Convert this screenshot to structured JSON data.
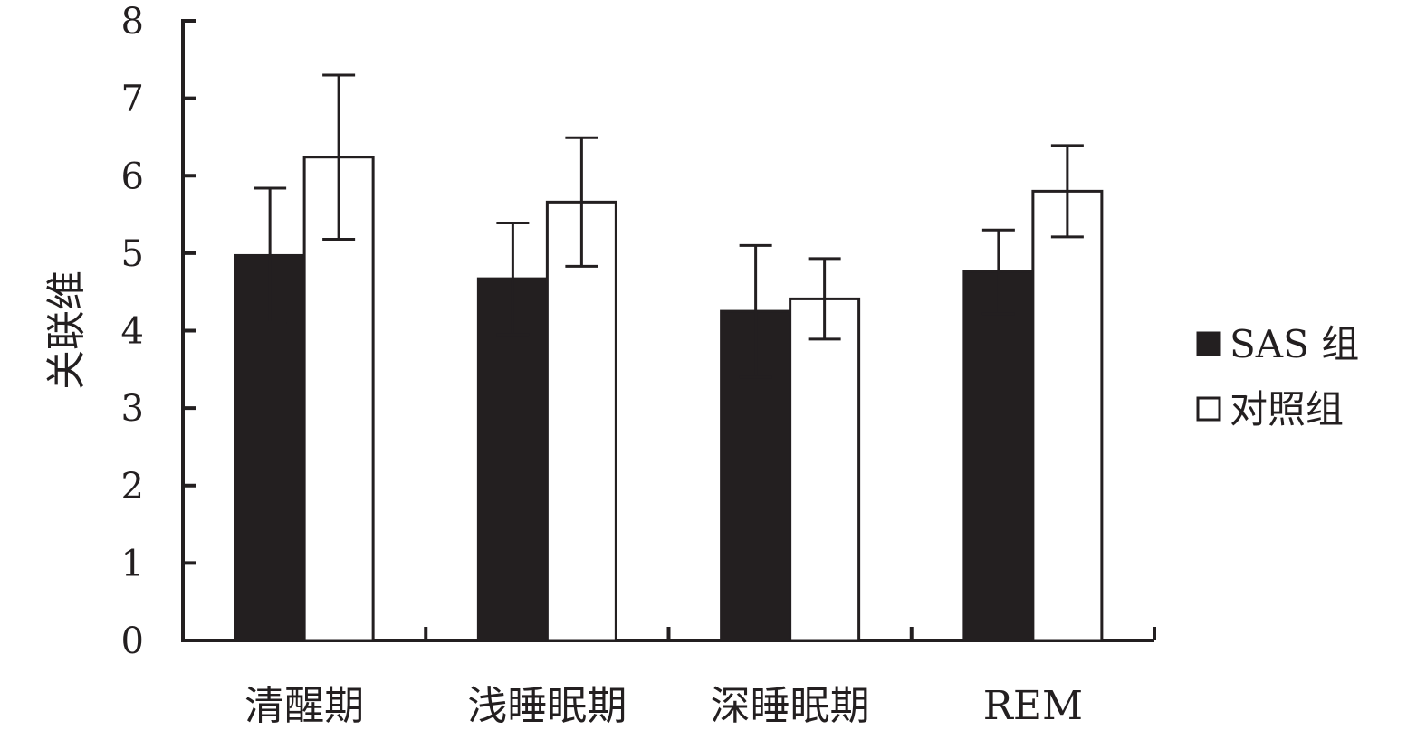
{
  "chart_data": {
    "type": "bar",
    "ylabel": "关联维",
    "ylim": [
      0,
      8
    ],
    "yticks": [
      "0",
      "1",
      "2",
      "3",
      "4",
      "5",
      "6",
      "7",
      "8"
    ],
    "categories": [
      "清醒期",
      "浅睡眠期",
      "深睡眠期",
      "REM"
    ],
    "legend_position": "right",
    "grid": false,
    "error_bars": true,
    "series": [
      {
        "name": "SAS 组",
        "color": "#231f20",
        "values": [
          4.97,
          4.67,
          4.25,
          4.76
        ],
        "errors": [
          0.87,
          0.72,
          0.85,
          0.54
        ]
      },
      {
        "name": "对照组",
        "color": "#ffffff",
        "values": [
          6.24,
          5.66,
          4.41,
          5.8
        ],
        "errors": [
          1.06,
          0.83,
          0.52,
          0.59
        ]
      }
    ]
  }
}
